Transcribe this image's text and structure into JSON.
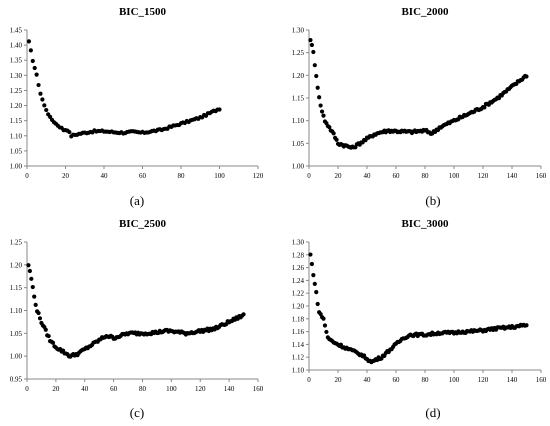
{
  "chart_data": [
    {
      "type": "scatter",
      "title": "BIC_1500",
      "caption": "(a)",
      "xlim": [
        0,
        120
      ],
      "ylim": [
        1.0,
        1.45
      ],
      "xticks": [
        "0",
        "20",
        "40",
        "60",
        "80",
        "100",
        "120"
      ],
      "yticks": [
        "1.00",
        "1.05",
        "1.10",
        "1.15",
        "1.20",
        "1.25",
        "1.30",
        "1.35",
        "1.40",
        "1.45"
      ],
      "anchors": [
        [
          1,
          1.41
        ],
        [
          3,
          1.35
        ],
        [
          5,
          1.3
        ],
        [
          7,
          1.24
        ],
        [
          9,
          1.2
        ],
        [
          12,
          1.16
        ],
        [
          15,
          1.14
        ],
        [
          17,
          1.13
        ],
        [
          19,
          1.12
        ],
        [
          21,
          1.12
        ],
        [
          23,
          1.1
        ],
        [
          26,
          1.105
        ],
        [
          30,
          1.11
        ],
        [
          35,
          1.115
        ],
        [
          40,
          1.115
        ],
        [
          45,
          1.112
        ],
        [
          50,
          1.11
        ],
        [
          55,
          1.113
        ],
        [
          60,
          1.11
        ],
        [
          65,
          1.115
        ],
        [
          70,
          1.12
        ],
        [
          75,
          1.13
        ],
        [
          80,
          1.14
        ],
        [
          85,
          1.15
        ],
        [
          90,
          1.16
        ],
        [
          95,
          1.175
        ],
        [
          100,
          1.19
        ]
      ],
      "n_points": 100,
      "x_start": 1,
      "x_end": 100,
      "noise": 0.003
    },
    {
      "type": "scatter",
      "title": "BIC_2000",
      "caption": "(b)",
      "xlim": [
        0,
        160
      ],
      "ylim": [
        1.0,
        1.3
      ],
      "xticks": [
        "0",
        "20",
        "40",
        "60",
        "80",
        "100",
        "120",
        "140",
        "160"
      ],
      "yticks": [
        "1.00",
        "1.05",
        "1.10",
        "1.15",
        "1.20",
        "1.25",
        "1.30"
      ],
      "anchors": [
        [
          1,
          1.28
        ],
        [
          3,
          1.25
        ],
        [
          5,
          1.2
        ],
        [
          7,
          1.15
        ],
        [
          9,
          1.12
        ],
        [
          11,
          1.1
        ],
        [
          14,
          1.085
        ],
        [
          17,
          1.07
        ],
        [
          20,
          1.05
        ],
        [
          25,
          1.045
        ],
        [
          30,
          1.04
        ],
        [
          35,
          1.05
        ],
        [
          40,
          1.06
        ],
        [
          45,
          1.07
        ],
        [
          50,
          1.075
        ],
        [
          55,
          1.078
        ],
        [
          60,
          1.077
        ],
        [
          70,
          1.075
        ],
        [
          80,
          1.078
        ],
        [
          85,
          1.072
        ],
        [
          90,
          1.085
        ],
        [
          100,
          1.1
        ],
        [
          110,
          1.115
        ],
        [
          120,
          1.13
        ],
        [
          130,
          1.15
        ],
        [
          140,
          1.175
        ],
        [
          150,
          1.2
        ]
      ],
      "n_points": 150,
      "x_start": 1,
      "x_end": 150,
      "noise": 0.003
    },
    {
      "type": "scatter",
      "title": "BIC_2500",
      "caption": "(c)",
      "xlim": [
        0,
        160
      ],
      "ylim": [
        0.95,
        1.25
      ],
      "xticks": [
        "0",
        "20",
        "40",
        "60",
        "80",
        "100",
        "120",
        "140",
        "160"
      ],
      "yticks": [
        "0.95",
        "1.00",
        "1.05",
        "1.10",
        "1.15",
        "1.20",
        "1.25"
      ],
      "anchors": [
        [
          1,
          1.2
        ],
        [
          3,
          1.17
        ],
        [
          5,
          1.13
        ],
        [
          7,
          1.1
        ],
        [
          10,
          1.075
        ],
        [
          13,
          1.055
        ],
        [
          16,
          1.035
        ],
        [
          20,
          1.02
        ],
        [
          25,
          1.01
        ],
        [
          30,
          1.0
        ],
        [
          35,
          1.005
        ],
        [
          40,
          1.015
        ],
        [
          45,
          1.025
        ],
        [
          50,
          1.035
        ],
        [
          55,
          1.045
        ],
        [
          60,
          1.04
        ],
        [
          65,
          1.045
        ],
        [
          70,
          1.05
        ],
        [
          80,
          1.05
        ],
        [
          90,
          1.052
        ],
        [
          95,
          1.055
        ],
        [
          100,
          1.055
        ],
        [
          110,
          1.05
        ],
        [
          120,
          1.055
        ],
        [
          130,
          1.06
        ],
        [
          140,
          1.075
        ],
        [
          150,
          1.09
        ]
      ],
      "n_points": 150,
      "x_start": 1,
      "x_end": 150,
      "noise": 0.003
    },
    {
      "type": "scatter",
      "title": "BIC_3000",
      "caption": "(d)",
      "xlim": [
        0,
        160
      ],
      "ylim": [
        1.1,
        1.3
      ],
      "xticks": [
        "0",
        "20",
        "40",
        "60",
        "80",
        "100",
        "120",
        "140",
        "160"
      ],
      "yticks": [
        "1.10",
        "1.12",
        "1.14",
        "1.16",
        "1.18",
        "1.20",
        "1.22",
        "1.24",
        "1.26",
        "1.28",
        "1.30"
      ],
      "anchors": [
        [
          1,
          1.28
        ],
        [
          3,
          1.25
        ],
        [
          5,
          1.22
        ],
        [
          7,
          1.19
        ],
        [
          10,
          1.18
        ],
        [
          13,
          1.15
        ],
        [
          16,
          1.145
        ],
        [
          20,
          1.14
        ],
        [
          25,
          1.135
        ],
        [
          30,
          1.13
        ],
        [
          35,
          1.125
        ],
        [
          40,
          1.118
        ],
        [
          43,
          1.112
        ],
        [
          45,
          1.115
        ],
        [
          50,
          1.12
        ],
        [
          55,
          1.13
        ],
        [
          60,
          1.14
        ],
        [
          65,
          1.15
        ],
        [
          70,
          1.155
        ],
        [
          80,
          1.155
        ],
        [
          90,
          1.158
        ],
        [
          100,
          1.158
        ],
        [
          105,
          1.16
        ],
        [
          110,
          1.16
        ],
        [
          120,
          1.162
        ],
        [
          130,
          1.165
        ],
        [
          140,
          1.167
        ],
        [
          150,
          1.17
        ]
      ],
      "n_points": 150,
      "x_start": 1,
      "x_end": 150,
      "noise": 0.002
    }
  ]
}
